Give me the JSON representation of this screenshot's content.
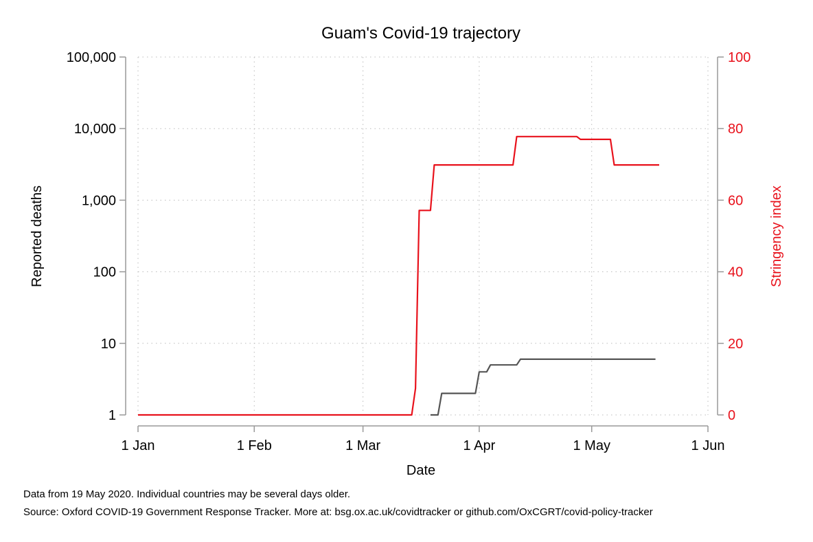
{
  "chart_data": {
    "type": "line",
    "title": "Guam's Covid-19 trajectory",
    "xlabel": "Date",
    "ylabel_left": "Reported deaths",
    "ylabel_right": "Stringency index",
    "x_ticks": [
      {
        "label": "1 Jan",
        "date": "2020-01-01"
      },
      {
        "label": "1 Feb",
        "date": "2020-02-01"
      },
      {
        "label": "1 Mar",
        "date": "2020-03-01"
      },
      {
        "label": "1 Apr",
        "date": "2020-04-01"
      },
      {
        "label": "1 May",
        "date": "2020-05-01"
      },
      {
        "label": "1 Jun",
        "date": "2020-06-01"
      }
    ],
    "xlim": [
      "2020-01-01",
      "2020-06-01"
    ],
    "y_left_scale": "log",
    "y_left_ticks": [
      {
        "label": "1",
        "value": 1
      },
      {
        "label": "10",
        "value": 10
      },
      {
        "label": "100",
        "value": 100
      },
      {
        "label": "1,000",
        "value": 1000
      },
      {
        "label": "10,000",
        "value": 10000
      },
      {
        "label": "100,000",
        "value": 100000
      }
    ],
    "y_left_range": [
      1,
      100000
    ],
    "y_right_ticks": [
      {
        "label": "0",
        "value": 0
      },
      {
        "label": "20",
        "value": 20
      },
      {
        "label": "40",
        "value": 40
      },
      {
        "label": "60",
        "value": 60
      },
      {
        "label": "80",
        "value": 80
      },
      {
        "label": "100",
        "value": 100
      }
    ],
    "y_right_range": [
      0,
      100
    ],
    "grid": true,
    "colors": {
      "deaths": "#555555",
      "stringency": "#e8111b",
      "axis": "#999999",
      "grid": "#bbbbbb"
    },
    "series": [
      {
        "key": "stringency",
        "axis": "right",
        "points": [
          [
            "2020-01-01",
            0
          ],
          [
            "2020-03-14",
            0
          ],
          [
            "2020-03-15",
            7.41
          ],
          [
            "2020-03-16",
            57.14
          ],
          [
            "2020-03-19",
            57.14
          ],
          [
            "2020-03-20",
            69.84
          ],
          [
            "2020-04-10",
            69.84
          ],
          [
            "2020-04-11",
            77.78
          ],
          [
            "2020-04-27",
            77.78
          ],
          [
            "2020-04-28",
            76.98
          ],
          [
            "2020-05-06",
            76.98
          ],
          [
            "2020-05-07",
            69.84
          ],
          [
            "2020-05-19",
            69.84
          ]
        ]
      },
      {
        "key": "deaths",
        "axis": "left",
        "points": [
          [
            "2020-03-19",
            1
          ],
          [
            "2020-03-21",
            1
          ],
          [
            "2020-03-22",
            2
          ],
          [
            "2020-03-31",
            2
          ],
          [
            "2020-04-01",
            4
          ],
          [
            "2020-04-03",
            4
          ],
          [
            "2020-04-04",
            5
          ],
          [
            "2020-04-11",
            5
          ],
          [
            "2020-04-12",
            6
          ],
          [
            "2020-05-18",
            6
          ]
        ]
      }
    ]
  },
  "notes": {
    "data_date": "Data from 19 May 2020. Individual countries may be several days older.",
    "source": "Source: Oxford COVID-19 Government Response Tracker. More at: bsg.ox.ac.uk/covidtracker or github.com/OxCGRT/covid-policy-tracker"
  }
}
